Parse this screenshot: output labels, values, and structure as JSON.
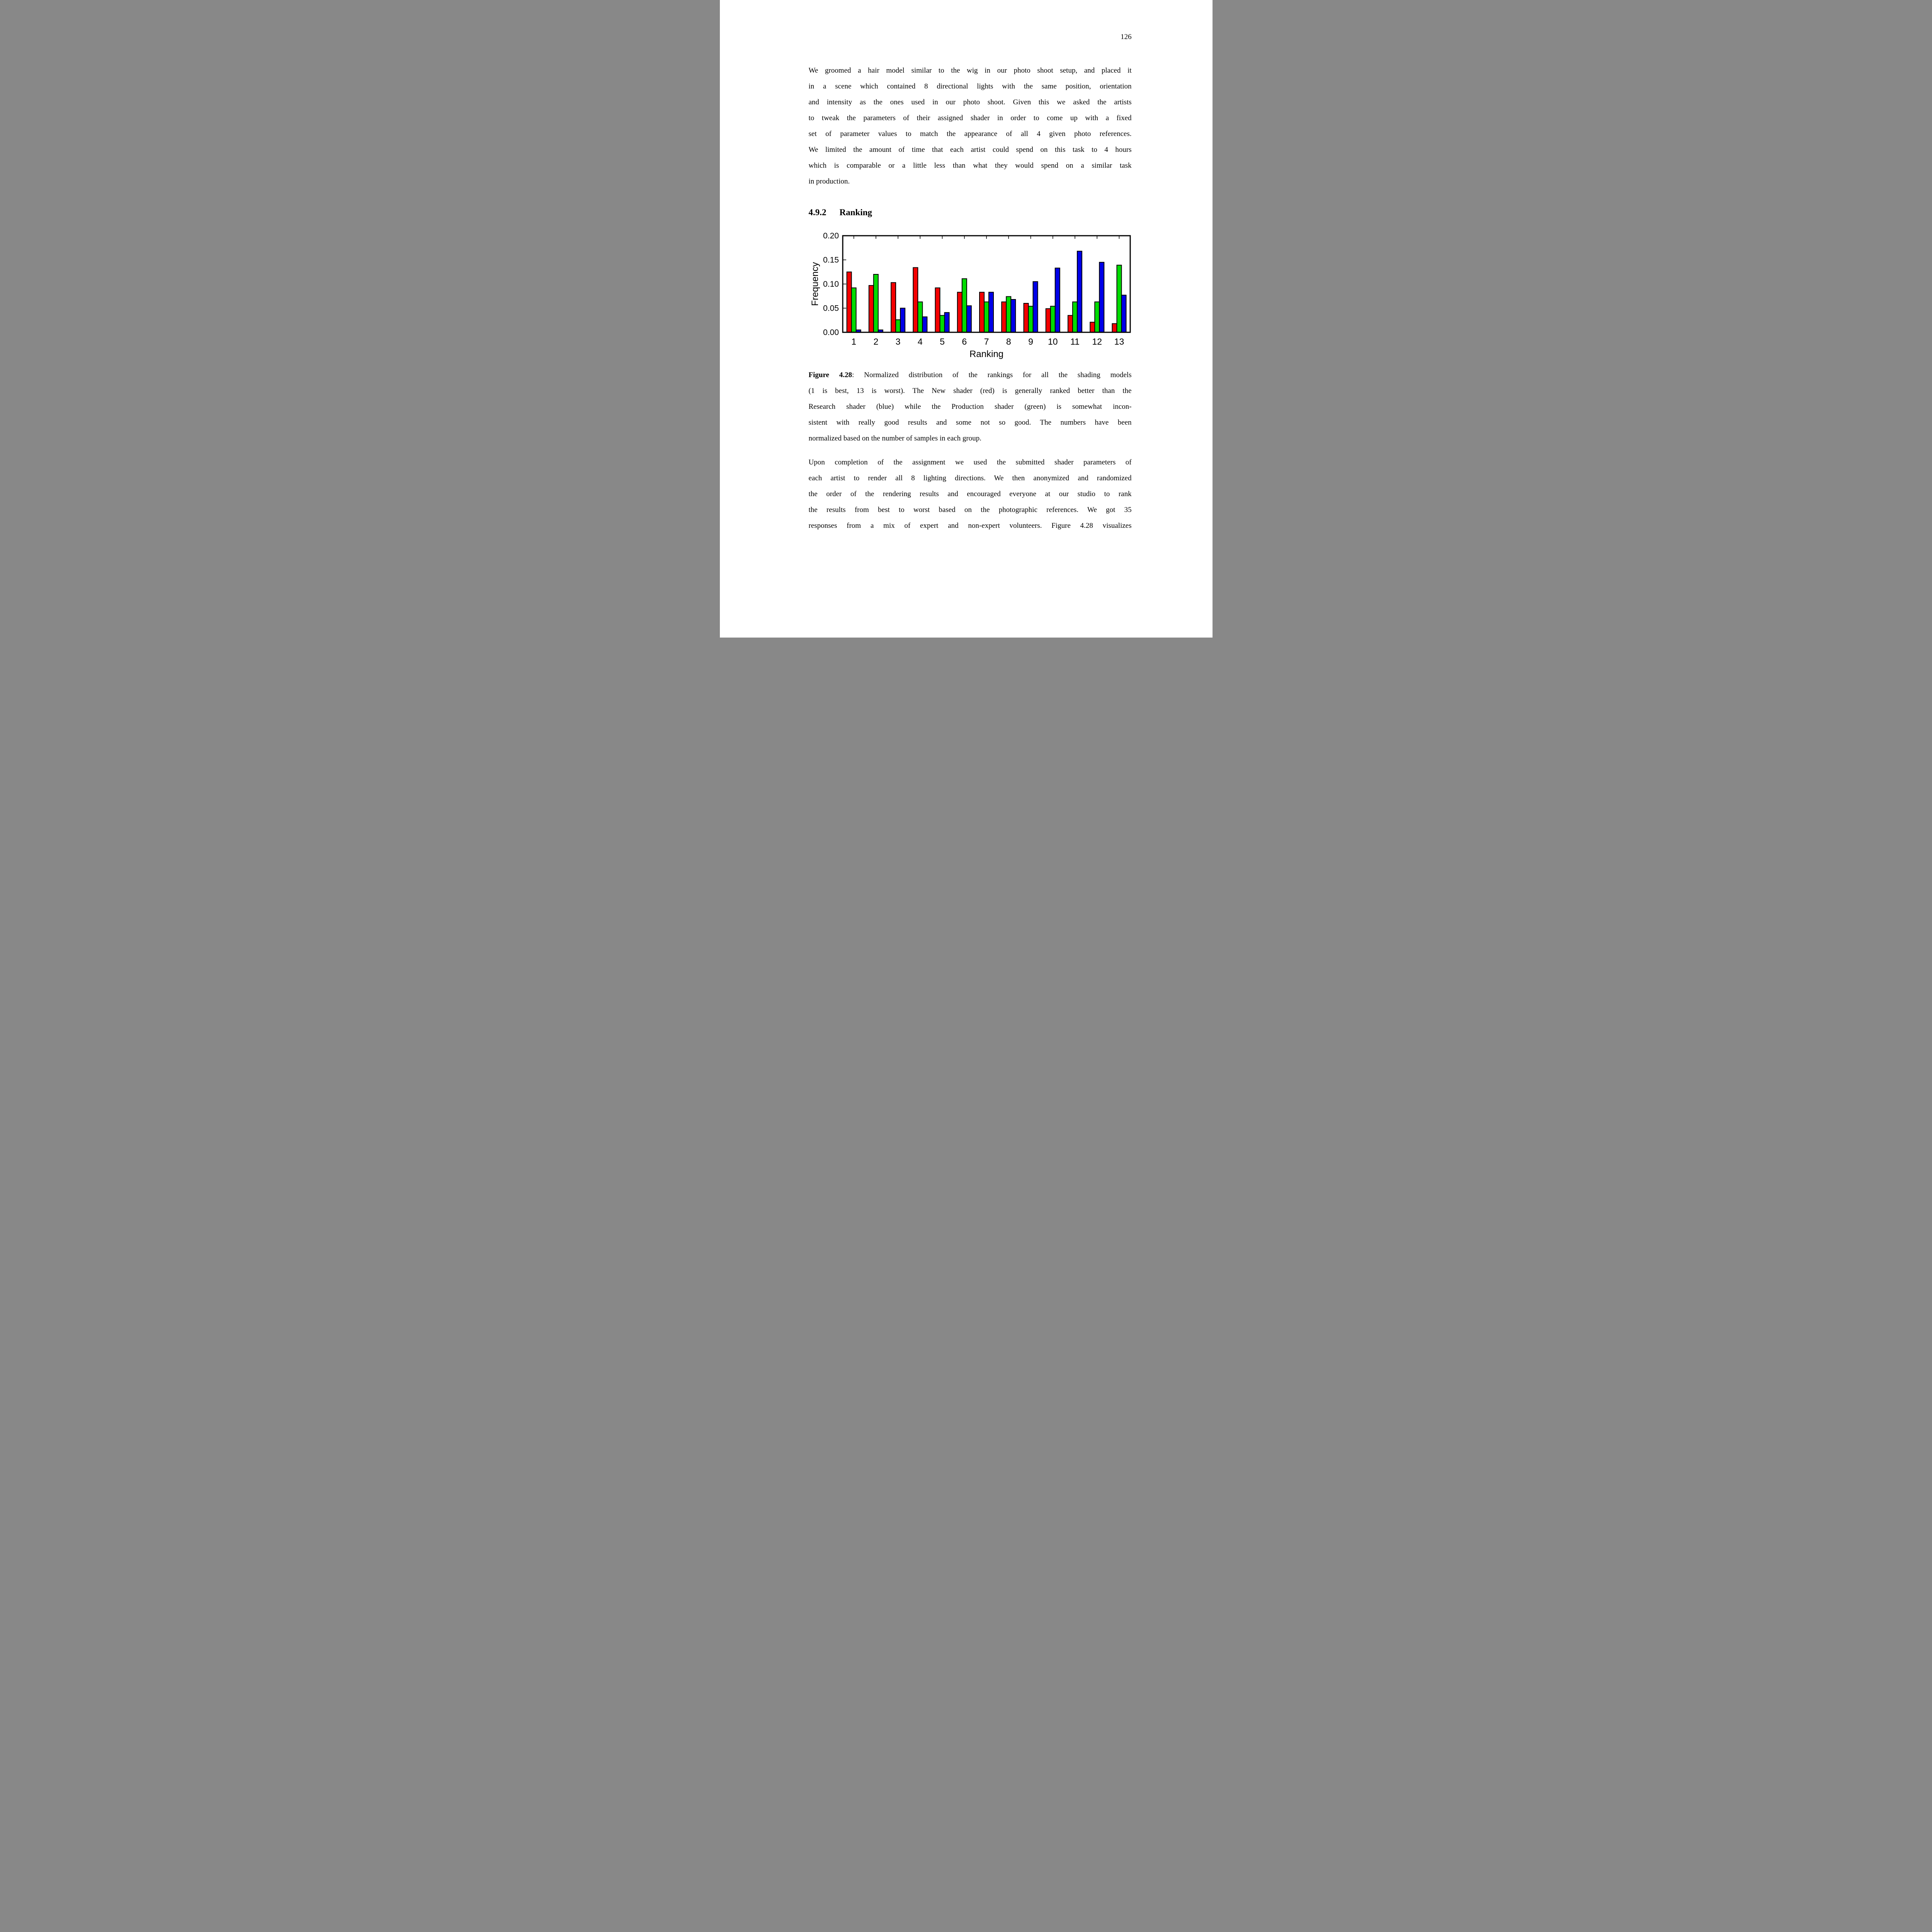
{
  "page_number": "126",
  "paragraph1": {
    "lines": [
      "We groomed a hair model similar to the wig in our photo shoot setup, and placed it",
      "in a scene which contained 8 directional lights with the same position, orientation",
      "and intensity as the ones used in our photo shoot.  Given this we asked the artists",
      "to tweak the parameters of their assigned shader in order to come up with a fixed",
      "set of parameter values to match the appearance of all 4 given photo references.",
      "We limited the amount of time that each artist could spend on this task to 4 hours",
      "which is comparable or a little less than what they would spend on a similar task",
      "in production."
    ]
  },
  "section": {
    "number": "4.9.2",
    "title": "Ranking"
  },
  "chart_data": {
    "type": "bar",
    "title": "",
    "xlabel": "Ranking",
    "ylabel": "Frequency",
    "ylim": [
      0,
      0.2
    ],
    "yticks": [
      0.0,
      0.05,
      0.1,
      0.15,
      0.2
    ],
    "grid": false,
    "legend_position": "none",
    "categories": [
      "1",
      "2",
      "3",
      "4",
      "5",
      "6",
      "7",
      "8",
      "9",
      "10",
      "11",
      "12",
      "13"
    ],
    "series": [
      {
        "name": "New shader",
        "color": "#f40000",
        "values": [
          0.125,
          0.097,
          0.103,
          0.134,
          0.092,
          0.083,
          0.083,
          0.063,
          0.06,
          0.049,
          0.035,
          0.021,
          0.018
        ]
      },
      {
        "name": "Production shader",
        "color": "#00dc00",
        "values": [
          0.092,
          0.12,
          0.026,
          0.063,
          0.035,
          0.111,
          0.063,
          0.074,
          0.054,
          0.054,
          0.063,
          0.063,
          0.139
        ]
      },
      {
        "name": "Research shader",
        "color": "#0000e8",
        "values": [
          0.005,
          0.005,
          0.05,
          0.032,
          0.041,
          0.055,
          0.083,
          0.068,
          0.105,
          0.133,
          0.168,
          0.145,
          0.077
        ]
      }
    ]
  },
  "caption": {
    "label": "Figure 4.28",
    "lines": [
      ": Normalized distribution of the rankings for all the shading models",
      "(1 is best, 13 is worst). The New shader (red) is generally ranked better than the",
      "Research shader (blue) while the Production shader (green) is somewhat incon-",
      "sistent with really good results and some not so good. The numbers have been",
      "normalized based on the number of samples in each group."
    ]
  },
  "paragraph2": {
    "lines": [
      "Upon completion of the assignment we used the submitted shader parameters of",
      "each artist to render all 8 lighting directions. We then anonymized and randomized",
      "the order of  the rendering results and encouraged everyone at our studio to rank",
      "the results from best to worst based on the photographic references.  We got 35",
      "responses from a mix of expert and non-expert volunteers. Figure 4.28 visualizes"
    ]
  }
}
